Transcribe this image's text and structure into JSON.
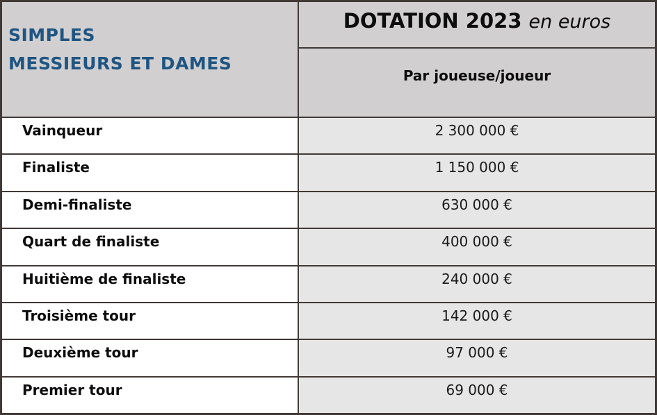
{
  "table": {
    "title_left": {
      "line1": "SIMPLES",
      "line2": "MESSIEURS ET DAMES"
    },
    "title_right": {
      "main": "DOTATION 2023",
      "suffix": "en euros"
    },
    "column_header": "Par joueuse/joueur",
    "rows": [
      {
        "label": "Vainqueur",
        "value": "2 300 000 €"
      },
      {
        "label": "Finaliste",
        "value": "1 150 000 €"
      },
      {
        "label": "Demi-finaliste",
        "value": "630 000 €"
      },
      {
        "label": "Quart de finaliste",
        "value": "400 000 €"
      },
      {
        "label": "Huitième de finaliste",
        "value": "240 000 €"
      },
      {
        "label": "Troisième tour",
        "value": "142 000 €"
      },
      {
        "label": "Deuxième tour",
        "value": "97 000 €"
      },
      {
        "label": "Premier tour",
        "value": "69 000 €"
      }
    ],
    "colors": {
      "border": "#413936",
      "header_background": "#D1CFCF",
      "value_cell_background": "#E7E6E6",
      "left_title_blue": "#1F5582",
      "text": "#0d0d0d"
    }
  },
  "chart_data": {
    "type": "table",
    "title": "DOTATION 2023 en euros",
    "columns": [
      "SIMPLES MESSIEURS ET DAMES",
      "Par joueuse/joueur"
    ],
    "rows": [
      [
        "Vainqueur",
        "2 300 000 €"
      ],
      [
        "Finaliste",
        "1 150 000 €"
      ],
      [
        "Demi-finaliste",
        "630 000 €"
      ],
      [
        "Quart de finaliste",
        "400 000 €"
      ],
      [
        "Huitième de finaliste",
        "240 000 €"
      ],
      [
        "Troisième tour",
        "142 000 €"
      ],
      [
        "Deuxième tour",
        "97 000 €"
      ],
      [
        "Premier tour",
        "69 000 €"
      ]
    ],
    "values_eur": [
      2300000,
      1150000,
      630000,
      400000,
      240000,
      142000,
      97000,
      69000
    ]
  }
}
